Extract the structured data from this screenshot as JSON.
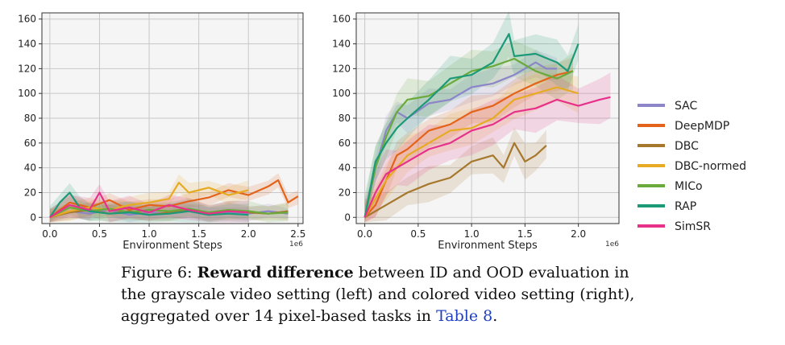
{
  "chart_data": [
    {
      "type": "line",
      "title": "",
      "xlabel": "Environment Steps",
      "x_scale_label": "1e6",
      "ylabel": "",
      "xlim": [
        -0.08,
        2.55
      ],
      "ylim": [
        -5,
        165
      ],
      "xticks": [
        0.0,
        0.5,
        1.0,
        1.5,
        2.0,
        2.5
      ],
      "xtick_labels": [
        "0.0",
        "0.5",
        "1.0",
        "1.5",
        "2.0",
        "2.5"
      ],
      "yticks": [
        0,
        20,
        40,
        60,
        80,
        100,
        120,
        140,
        160
      ],
      "ytick_labels": [
        "0",
        "20",
        "40",
        "60",
        "80",
        "100",
        "120",
        "140",
        "160"
      ],
      "grid": true,
      "series": [
        {
          "name": "SAC",
          "x": [
            0.0,
            0.2,
            0.4,
            0.6,
            0.8,
            1.0,
            1.2,
            1.4,
            1.6,
            1.8,
            2.0,
            2.2,
            2.4
          ],
          "y": [
            0,
            5,
            3,
            6,
            2,
            4,
            3,
            5,
            2,
            4,
            3,
            5,
            3
          ]
        },
        {
          "name": "DeepMDP",
          "x": [
            0.0,
            0.2,
            0.4,
            0.6,
            0.8,
            1.0,
            1.2,
            1.4,
            1.6,
            1.8,
            2.0,
            2.2,
            2.3,
            2.4,
            2.5
          ],
          "y": [
            0,
            12,
            8,
            14,
            6,
            10,
            9,
            13,
            16,
            22,
            18,
            25,
            30,
            12,
            17
          ]
        },
        {
          "name": "DBC",
          "x": [
            0.0,
            0.2,
            0.4,
            0.6,
            0.8,
            1.0,
            1.2,
            1.4,
            1.6,
            1.8,
            2.0,
            2.2,
            2.4
          ],
          "y": [
            0,
            4,
            6,
            3,
            5,
            2,
            4,
            6,
            3,
            5,
            4,
            3,
            5
          ]
        },
        {
          "name": "DBC-normed",
          "x": [
            0.0,
            0.2,
            0.4,
            0.6,
            0.8,
            1.0,
            1.2,
            1.3,
            1.4,
            1.6,
            1.8,
            2.0
          ],
          "y": [
            0,
            5,
            8,
            6,
            10,
            12,
            15,
            28,
            20,
            24,
            18,
            22
          ]
        },
        {
          "name": "MICo",
          "x": [
            0.0,
            0.2,
            0.4,
            0.6,
            0.8,
            1.0,
            1.2,
            1.4,
            1.6,
            1.8,
            2.0,
            2.2,
            2.4
          ],
          "y": [
            0,
            8,
            5,
            7,
            4,
            6,
            5,
            7,
            4,
            6,
            5,
            3,
            4
          ]
        },
        {
          "name": "RAP",
          "x": [
            0.0,
            0.1,
            0.2,
            0.3,
            0.4,
            0.6,
            0.8,
            1.0,
            1.2,
            1.4,
            1.6,
            1.8,
            2.0
          ],
          "y": [
            0,
            12,
            20,
            8,
            5,
            3,
            4,
            2,
            3,
            5,
            2,
            3,
            2
          ]
        },
        {
          "name": "SimSR",
          "x": [
            0.0,
            0.2,
            0.4,
            0.5,
            0.6,
            0.8,
            1.0,
            1.2,
            1.4,
            1.6,
            1.8,
            2.0
          ],
          "y": [
            0,
            10,
            6,
            20,
            5,
            8,
            4,
            10,
            6,
            3,
            5,
            4
          ]
        }
      ]
    },
    {
      "type": "line",
      "title": "",
      "xlabel": "Environment Steps",
      "x_scale_label": "1e6",
      "ylabel": "",
      "xlim": [
        -0.08,
        2.38
      ],
      "ylim": [
        -5,
        165
      ],
      "xticks": [
        0.0,
        0.5,
        1.0,
        1.5,
        2.0
      ],
      "xtick_labels": [
        "0.0",
        "0.5",
        "1.0",
        "1.5",
        "2.0"
      ],
      "yticks": [
        0,
        20,
        40,
        60,
        80,
        100,
        120,
        140,
        160
      ],
      "ytick_labels": [
        "0",
        "20",
        "40",
        "60",
        "80",
        "100",
        "120",
        "140",
        "160"
      ],
      "grid": true,
      "series": [
        {
          "name": "SAC",
          "x": [
            0.0,
            0.1,
            0.2,
            0.3,
            0.4,
            0.6,
            0.8,
            1.0,
            1.2,
            1.4,
            1.6,
            1.7,
            1.8
          ],
          "y": [
            0,
            40,
            70,
            85,
            80,
            92,
            95,
            105,
            108,
            115,
            125,
            120,
            120
          ]
        },
        {
          "name": "DeepMDP",
          "x": [
            0.0,
            0.1,
            0.2,
            0.3,
            0.4,
            0.6,
            0.8,
            1.0,
            1.2,
            1.4,
            1.6,
            1.8,
            1.95
          ],
          "y": [
            0,
            10,
            30,
            50,
            55,
            70,
            75,
            85,
            90,
            100,
            108,
            115,
            118
          ]
        },
        {
          "name": "DBC",
          "x": [
            0.0,
            0.2,
            0.4,
            0.6,
            0.8,
            1.0,
            1.2,
            1.3,
            1.4,
            1.5,
            1.6,
            1.7
          ],
          "y": [
            0,
            10,
            20,
            27,
            32,
            45,
            50,
            40,
            60,
            45,
            50,
            58
          ]
        },
        {
          "name": "DBC-normed",
          "x": [
            0.0,
            0.2,
            0.4,
            0.6,
            0.8,
            1.0,
            1.2,
            1.4,
            1.6,
            1.8,
            2.0
          ],
          "y": [
            0,
            30,
            50,
            60,
            70,
            72,
            80,
            95,
            100,
            105,
            100
          ]
        },
        {
          "name": "MICo",
          "x": [
            0.0,
            0.1,
            0.2,
            0.3,
            0.4,
            0.6,
            0.8,
            1.0,
            1.2,
            1.4,
            1.6,
            1.8,
            1.95
          ],
          "y": [
            0,
            40,
            65,
            85,
            95,
            98,
            108,
            118,
            122,
            128,
            118,
            112,
            118
          ]
        },
        {
          "name": "RAP",
          "x": [
            0.0,
            0.1,
            0.2,
            0.3,
            0.4,
            0.6,
            0.8,
            1.0,
            1.2,
            1.35,
            1.4,
            1.6,
            1.8,
            1.9,
            2.0
          ],
          "y": [
            0,
            45,
            60,
            72,
            80,
            95,
            112,
            115,
            125,
            148,
            130,
            132,
            125,
            118,
            140
          ]
        },
        {
          "name": "SimSR",
          "x": [
            0.0,
            0.1,
            0.2,
            0.3,
            0.4,
            0.6,
            0.8,
            1.0,
            1.2,
            1.4,
            1.6,
            1.8,
            2.0,
            2.2,
            2.3
          ],
          "y": [
            0,
            20,
            35,
            40,
            45,
            55,
            60,
            70,
            75,
            85,
            88,
            95,
            90,
            95,
            97
          ]
        }
      ]
    }
  ],
  "legend": {
    "position": "right",
    "items": [
      {
        "label": "SAC",
        "color": "#8c85c8"
      },
      {
        "label": "DeepMDP",
        "color": "#e3631a"
      },
      {
        "label": "DBC",
        "color": "#a6782d"
      },
      {
        "label": "DBC-normed",
        "color": "#e6ab23"
      },
      {
        "label": "MICo",
        "color": "#6aaa3a"
      },
      {
        "label": "RAP",
        "color": "#1c9a78"
      },
      {
        "label": "SimSR",
        "color": "#e7308a"
      }
    ]
  },
  "caption": {
    "prefix": "Figure 6: ",
    "bold": "Reward difference",
    "line1_rest": " between ID and OOD evaluation in",
    "line2": "the grayscale video setting (left) and colored video setting (right),",
    "line3_pre": "aggregated over 14 pixel-based tasks in ",
    "ref": "Table 8",
    "line3_post": "."
  }
}
